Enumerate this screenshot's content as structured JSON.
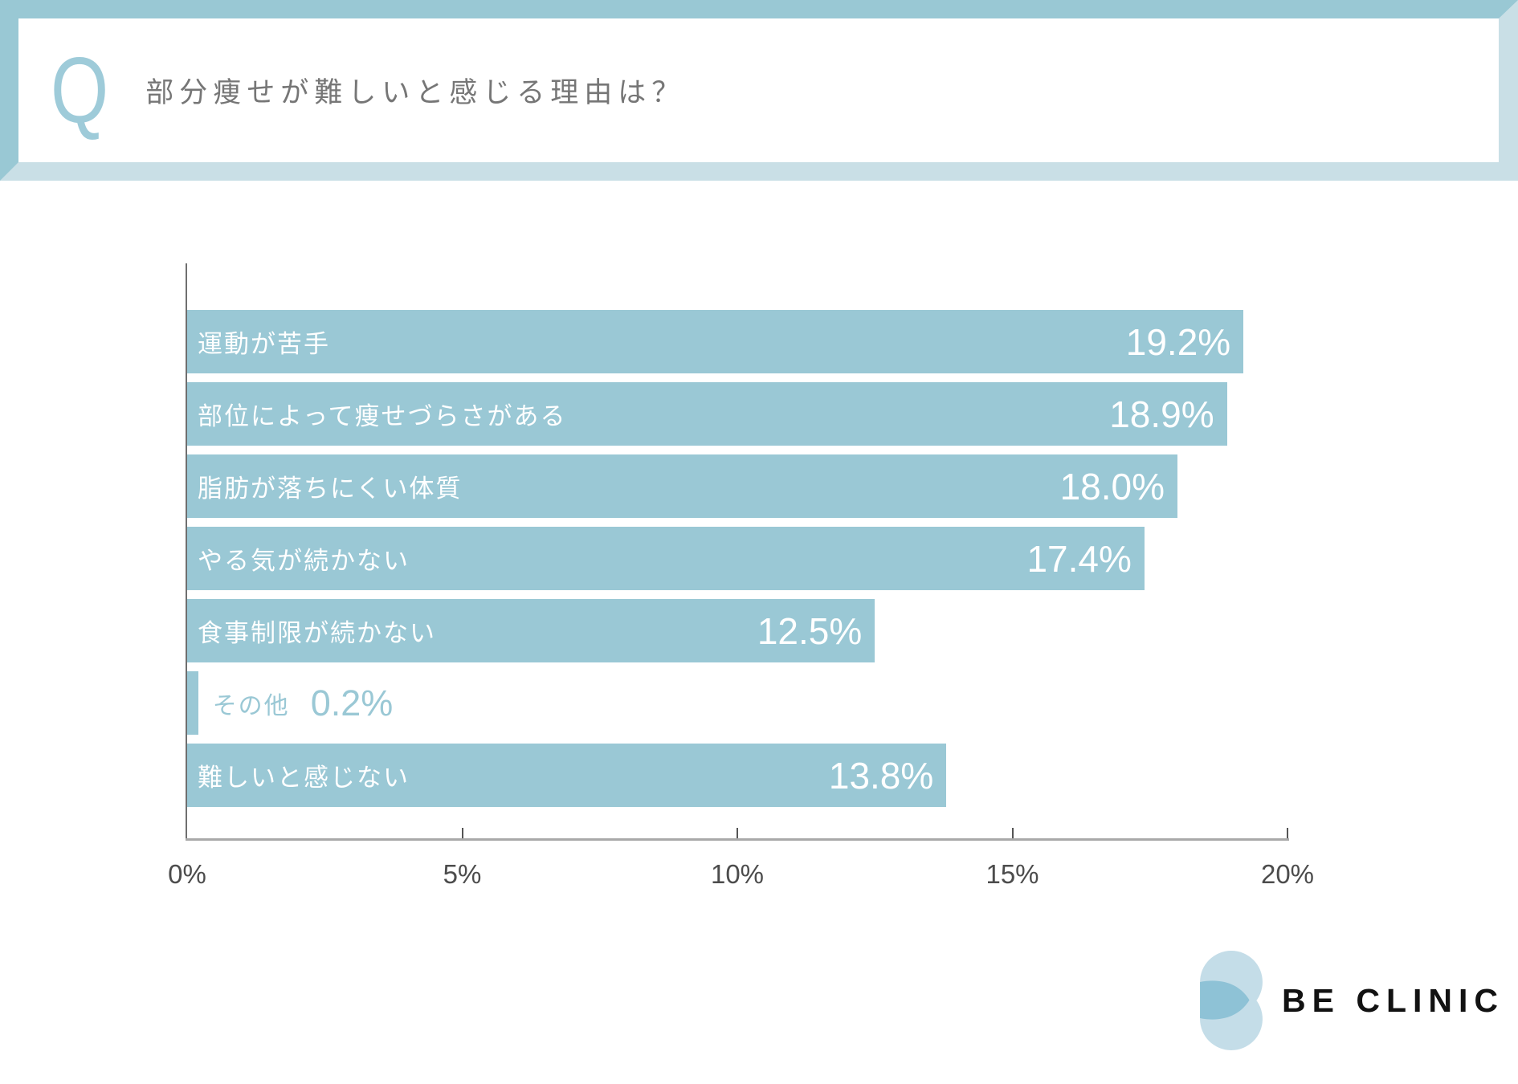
{
  "header": {
    "q_label": "Q",
    "question": "部分痩せが難しいと感じる理由は？"
  },
  "chart_data": {
    "type": "bar",
    "orientation": "horizontal",
    "title": "部分痩せが難しいと感じる理由は？",
    "categories": [
      "運動が苦手",
      "部位によって痩せづらさがある",
      "脂肪が落ちにくい体質",
      "やる気が続かない",
      "食事制限が続かない",
      "その他",
      "難しいと感じない"
    ],
    "values": [
      19.2,
      18.9,
      18.0,
      17.4,
      12.5,
      0.2,
      13.8
    ],
    "value_labels": [
      "19.2%",
      "18.9%",
      "18.0%",
      "17.4%",
      "12.5%",
      "0.2%",
      "13.8%"
    ],
    "x_tick_labels": [
      "0%",
      "5%",
      "10%",
      "15%",
      "20%"
    ],
    "xlim": [
      0,
      20
    ],
    "grid": false,
    "legend": false,
    "outside_label_threshold": 1
  },
  "footer": {
    "brand": "BE CLINIC"
  },
  "colors": {
    "bar": "#9ac8d5",
    "frame_dark": "#99c8d4",
    "frame_light": "#c9dfe6",
    "q_mark": "#9ecbd9",
    "question_text": "#767676",
    "bar_text": "#ffffff",
    "outside_text": "#9ac8d5",
    "axis_line": "#a9a9a9",
    "axis_spine": "#6f6f6f",
    "tick": "#555555",
    "tick_label": "#4c4c4c",
    "brand_text": "#121212",
    "logo_circle": "#c4dde8",
    "logo_lens": "#8ec2d6"
  }
}
